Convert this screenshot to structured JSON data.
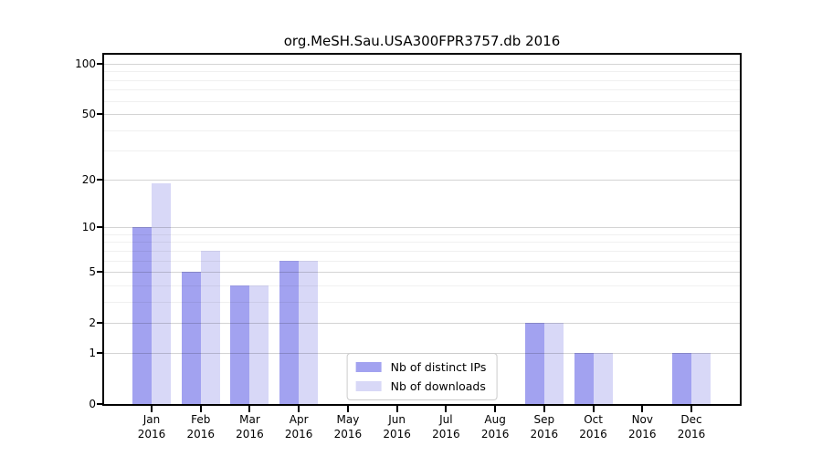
{
  "chart_data": {
    "type": "bar",
    "title": "org.MeSH.Sau.USA300FPR3757.db 2016",
    "y_scale": "log1p",
    "ylim": [
      0,
      100
    ],
    "y_ticks": [
      100,
      50,
      20,
      10,
      5,
      2,
      1,
      0
    ],
    "grid": true,
    "categories": [
      {
        "month": "Jan",
        "year": "2016"
      },
      {
        "month": "Feb",
        "year": "2016"
      },
      {
        "month": "Mar",
        "year": "2016"
      },
      {
        "month": "Apr",
        "year": "2016"
      },
      {
        "month": "May",
        "year": "2016"
      },
      {
        "month": "Jun",
        "year": "2016"
      },
      {
        "month": "Jul",
        "year": "2016"
      },
      {
        "month": "Aug",
        "year": "2016"
      },
      {
        "month": "Sep",
        "year": "2016"
      },
      {
        "month": "Oct",
        "year": "2016"
      },
      {
        "month": "Nov",
        "year": "2016"
      },
      {
        "month": "Dec",
        "year": "2016"
      }
    ],
    "series": [
      {
        "name": "Nb of distinct IPs",
        "color": "#a2a2f0",
        "values": [
          10,
          5,
          4,
          6,
          0,
          0,
          0,
          0,
          2,
          1,
          0,
          1
        ]
      },
      {
        "name": "Nb of downloads",
        "color": "#d8d8f7",
        "values": [
          19,
          7,
          4,
          6,
          0,
          0,
          0,
          0,
          2,
          1,
          0,
          1
        ]
      }
    ],
    "legend_position": "lower center"
  }
}
